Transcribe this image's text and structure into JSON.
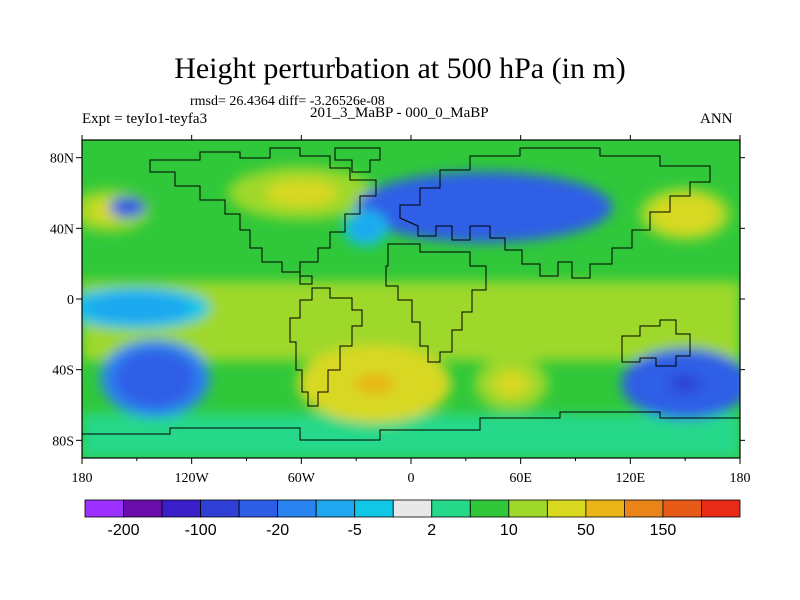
{
  "title": "Height perturbation at 500 hPa (in m)",
  "stats": "rmsd= 26.4364 diff= -3.26526e-08",
  "left_label": "Expt = teyIo1-teyfa3",
  "center_label": "201_3_MaBP - 000_0_MaBP",
  "right_label": "ANN",
  "map": {
    "lon_range": [
      -180,
      180
    ],
    "lat_range": [
      -90,
      90
    ],
    "lon_ticks": [
      {
        "value": -180,
        "label": "180"
      },
      {
        "value": -120,
        "label": "120W"
      },
      {
        "value": -60,
        "label": "60W"
      },
      {
        "value": 0,
        "label": "0"
      },
      {
        "value": 60,
        "label": "60E"
      },
      {
        "value": 120,
        "label": "120E"
      },
      {
        "value": 180,
        "label": "180"
      }
    ],
    "lat_ticks": [
      {
        "value": 80,
        "label": "80N"
      },
      {
        "value": 40,
        "label": "40N"
      },
      {
        "value": 0,
        "label": "0"
      },
      {
        "value": -40,
        "label": "40S"
      },
      {
        "value": -80,
        "label": "80S"
      }
    ],
    "features": [
      {
        "name": "high-north-pacific",
        "lon": -165,
        "lat": 50,
        "rx": 22,
        "ry": 12,
        "value": 30
      },
      {
        "name": "low-aleutian",
        "lon": -155,
        "lat": 52,
        "rx": 10,
        "ry": 6,
        "value": -60
      },
      {
        "name": "high-north-america",
        "lon": -60,
        "lat": 60,
        "rx": 40,
        "ry": 15,
        "value": 30
      },
      {
        "name": "low-siberia",
        "lon": 40,
        "lat": 52,
        "rx": 70,
        "ry": 20,
        "value": -50
      },
      {
        "name": "low-north-atlantic",
        "lon": -25,
        "lat": 40,
        "rx": 12,
        "ry": 10,
        "value": -10
      },
      {
        "name": "high-east-asia",
        "lon": 150,
        "lat": 48,
        "rx": 25,
        "ry": 15,
        "value": 40
      },
      {
        "name": "high-south-atlantic",
        "lon": -20,
        "lat": -48,
        "rx": 42,
        "ry": 22,
        "value": 60
      },
      {
        "name": "high-south-indian",
        "lon": 55,
        "lat": -48,
        "rx": 20,
        "ry": 15,
        "value": 30
      },
      {
        "name": "low-south-pacific",
        "lon": -140,
        "lat": -45,
        "rx": 30,
        "ry": 22,
        "value": -40
      },
      {
        "name": "low-southeast-indian",
        "lon": 150,
        "lat": -48,
        "rx": 35,
        "ry": 20,
        "value": -60
      },
      {
        "name": "low-tropical-pacific",
        "lon": -150,
        "lat": -5,
        "rx": 40,
        "ry": 12,
        "value": -10
      }
    ]
  },
  "colorbar": {
    "colors": [
      "#9b30ff",
      "#6a0dad",
      "#3a1fc8",
      "#2f3fd6",
      "#2d5fe6",
      "#2a84f0",
      "#1fa8f0",
      "#10c7e6",
      "#e8e8e8",
      "#25d88a",
      "#30c83a",
      "#9ed82a",
      "#d8d820",
      "#e8b418",
      "#e88418",
      "#e85a18",
      "#e82c18"
    ],
    "labels": [
      {
        "boundary": 1,
        "text": "-200"
      },
      {
        "boundary": 3,
        "text": "-100"
      },
      {
        "boundary": 5,
        "text": "-20"
      },
      {
        "boundary": 7,
        "text": "-5"
      },
      {
        "boundary": 9,
        "text": "2"
      },
      {
        "boundary": 11,
        "text": "10"
      },
      {
        "boundary": 13,
        "text": "50"
      },
      {
        "boundary": 15,
        "text": "150"
      }
    ]
  }
}
